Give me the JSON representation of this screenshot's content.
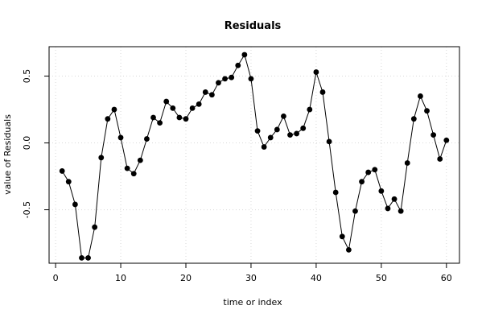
{
  "chart_data": {
    "type": "line",
    "title": "Residuals",
    "xlabel": "time or index",
    "ylabel": "value of Residuals",
    "xlim": [
      -1,
      62
    ],
    "ylim": [
      -0.9,
      0.72
    ],
    "xticks": [
      0,
      10,
      20,
      30,
      40,
      50,
      60
    ],
    "yticks": [
      -0.5,
      0.0,
      0.5
    ],
    "ytick_labels": [
      "-0.5",
      "0.0",
      "0.5"
    ],
    "grid": true,
    "series": [
      {
        "marker": "filled-circle",
        "line": true,
        "color": "#000000",
        "x": [
          1,
          2,
          3,
          4,
          5,
          6,
          7,
          8,
          9,
          10,
          11,
          12,
          13,
          14,
          15,
          16,
          17,
          18,
          19,
          20,
          21,
          22,
          23,
          24,
          25,
          26,
          27,
          28,
          29,
          30,
          31,
          32,
          33,
          34,
          35,
          36,
          37,
          38,
          39,
          40,
          41,
          42,
          43,
          44,
          45,
          46,
          47,
          48,
          49,
          50,
          51,
          52,
          53,
          54,
          55,
          56,
          57,
          58,
          59,
          60
        ],
        "values": [
          -0.21,
          -0.29,
          -0.46,
          -0.86,
          -0.86,
          -0.63,
          -0.11,
          0.18,
          0.25,
          0.04,
          -0.19,
          -0.23,
          -0.13,
          0.03,
          0.19,
          0.15,
          0.31,
          0.26,
          0.19,
          0.18,
          0.26,
          0.29,
          0.38,
          0.36,
          0.45,
          0.48,
          0.49,
          0.58,
          0.66,
          0.48,
          0.09,
          -0.03,
          0.04,
          0.1,
          0.2,
          0.06,
          0.07,
          0.11,
          0.25,
          0.53,
          0.38,
          0.01,
          -0.37,
          -0.7,
          -0.8,
          -0.51,
          -0.29,
          -0.22,
          -0.2,
          -0.36,
          -0.49,
          -0.42,
          -0.51,
          -0.15,
          0.18,
          0.35,
          0.24,
          0.06,
          -0.12,
          0.02
        ]
      }
    ]
  }
}
